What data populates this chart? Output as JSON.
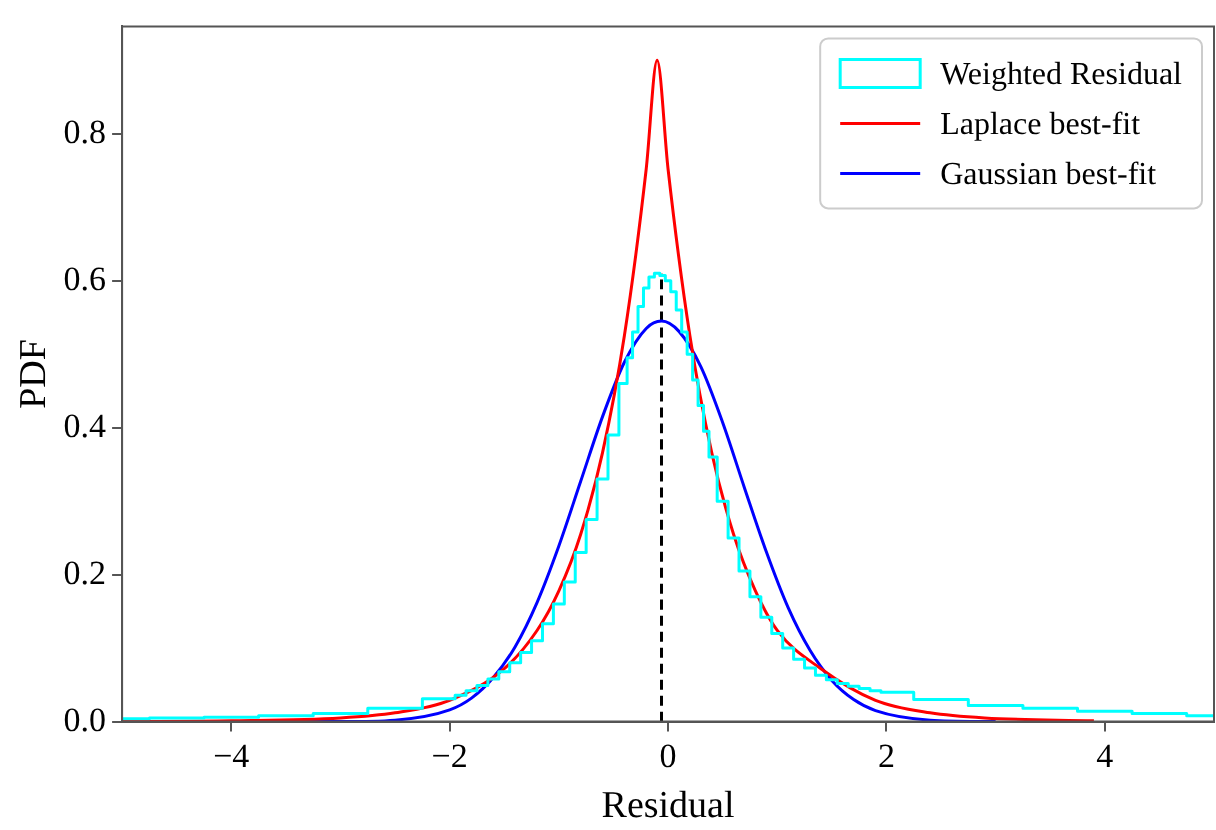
{
  "chart_data": {
    "type": "line",
    "xlabel": "Residual",
    "ylabel": "PDF",
    "xlim": [
      -5,
      5
    ],
    "xticks": [
      {
        "value": -4,
        "label": "−4"
      },
      {
        "value": -2,
        "label": "−2"
      },
      0,
      2,
      4
    ],
    "ylim": [
      0,
      0.946
    ],
    "yticks": [
      {
        "value": 0,
        "label": "0.0"
      },
      0.2,
      0.4,
      0.6,
      0.8
    ],
    "grid": false,
    "legend": "top right",
    "marker": "none",
    "series": [
      {
        "name": "Weighted Residual",
        "type": "step",
        "color": "#00ffff",
        "x": [
          -5,
          -4.5,
          -4,
          -3.5,
          -3,
          -2.5,
          -2,
          -1.9,
          -1.8,
          -1.7,
          -1.6,
          -1.5,
          -1.4,
          -1.3,
          -1.2,
          -1.1,
          -1.0,
          -0.9,
          -0.8,
          -0.7,
          -0.6,
          -0.5,
          -0.4,
          -0.35,
          -0.3,
          -0.25,
          -0.2,
          -0.15,
          -0.1,
          -0.05,
          0,
          0.05,
          0.1,
          0.15,
          0.2,
          0.25,
          0.3,
          0.35,
          0.4,
          0.5,
          0.6,
          0.7,
          0.8,
          0.9,
          1.0,
          1.1,
          1.2,
          1.3,
          1.4,
          1.5,
          1.6,
          1.7,
          1.8,
          1.9,
          2.0,
          2.5,
          3,
          3.5,
          4,
          4.5,
          5
        ],
        "values": [
          0.004,
          0.005,
          0.006,
          0.008,
          0.011,
          0.018,
          0.031,
          0.036,
          0.042,
          0.049,
          0.058,
          0.068,
          0.08,
          0.094,
          0.11,
          0.133,
          0.16,
          0.19,
          0.23,
          0.275,
          0.33,
          0.39,
          0.46,
          0.495,
          0.53,
          0.565,
          0.59,
          0.605,
          0.61,
          0.607,
          0.6,
          0.585,
          0.56,
          0.53,
          0.5,
          0.465,
          0.43,
          0.395,
          0.36,
          0.3,
          0.25,
          0.205,
          0.17,
          0.142,
          0.12,
          0.1,
          0.085,
          0.073,
          0.063,
          0.057,
          0.052,
          0.048,
          0.045,
          0.042,
          0.04,
          0.03,
          0.022,
          0.018,
          0.014,
          0.011,
          0.008
        ]
      },
      {
        "name": "Laplace best-fit",
        "type": "line",
        "color": "#ff0000",
        "x": [
          -5,
          -4,
          -3,
          -2.5,
          -2,
          -1.5,
          -1.2,
          -1,
          -0.8,
          -0.6,
          -0.4,
          -0.2,
          -0.1,
          0,
          0.2,
          0.4,
          0.6,
          0.8,
          1.0,
          1.4,
          1.9,
          2.4,
          2.9,
          3.9
        ],
        "values": [
          0.0,
          0.001,
          0.005,
          0.012,
          0.029,
          0.072,
          0.124,
          0.178,
          0.255,
          0.366,
          0.525,
          0.752,
          0.9,
          0.752,
          0.525,
          0.366,
          0.255,
          0.178,
          0.124,
          0.072,
          0.029,
          0.012,
          0.005,
          0.001
        ]
      },
      {
        "name": "Gaussian best-fit",
        "type": "line",
        "color": "#0000ff",
        "x": [
          -5,
          -3,
          -2.5,
          -2,
          -1.8,
          -1.6,
          -1.4,
          -1.2,
          -1.0,
          -0.8,
          -0.6,
          -0.4,
          -0.2,
          -0.06,
          0.1,
          0.3,
          0.5,
          0.7,
          0.9,
          1.1,
          1.3,
          1.5,
          1.7,
          1.9,
          2.4,
          3
        ],
        "values": [
          0.0,
          0.0,
          0.002,
          0.016,
          0.032,
          0.06,
          0.102,
          0.162,
          0.239,
          0.327,
          0.415,
          0.489,
          0.535,
          0.545,
          0.531,
          0.483,
          0.407,
          0.318,
          0.231,
          0.155,
          0.097,
          0.056,
          0.03,
          0.015,
          0.002,
          0.0
        ]
      },
      {
        "type": "line",
        "color": "#000000",
        "line_style": "dashed",
        "x": [
          -0.06,
          -0.06
        ],
        "values": [
          0,
          0.61
        ]
      }
    ]
  }
}
